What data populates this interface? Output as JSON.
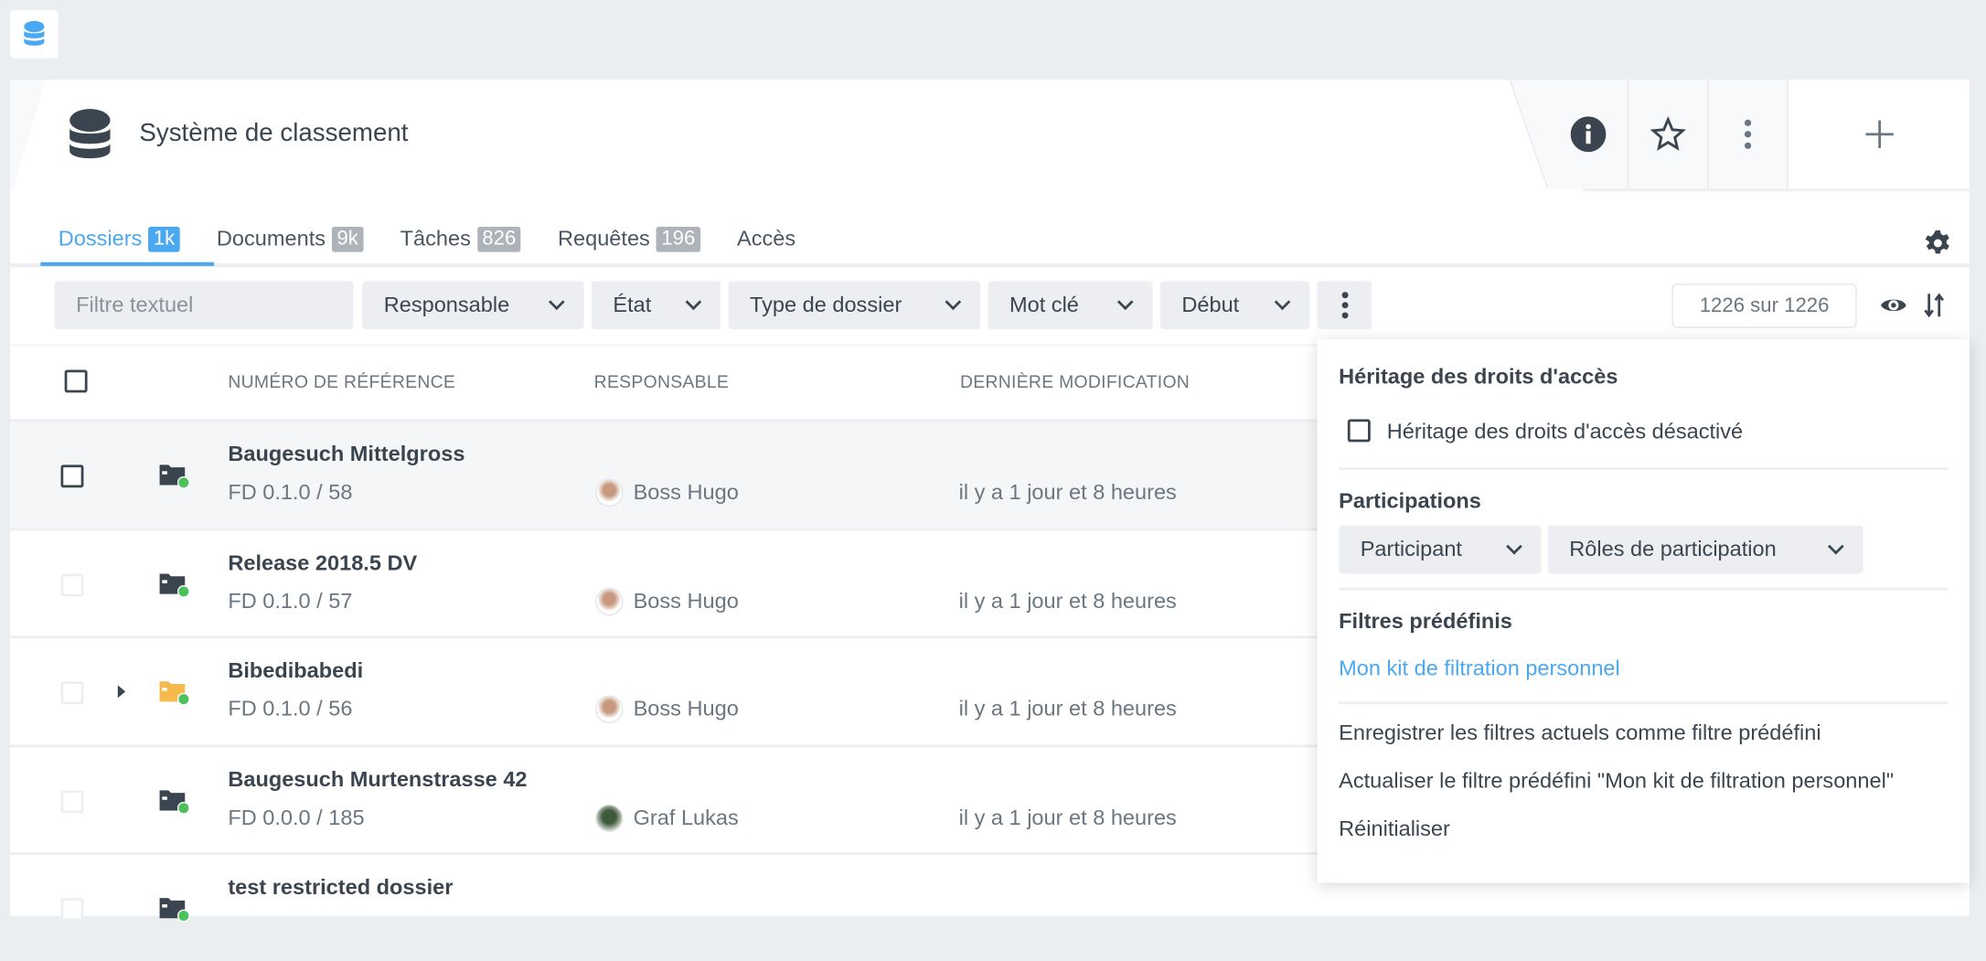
{
  "colors": {
    "accent": "#4aa8f0",
    "text": "#3a4550",
    "muted": "#6b7680",
    "status_green": "#4cc05a",
    "folder_yellow": "#f6b94e"
  },
  "app_icon": "database-icon",
  "header": {
    "title": "Système de classement",
    "icon": "database-icon",
    "actions": [
      "info-icon",
      "star-icon",
      "kebab-icon",
      "plus-icon"
    ]
  },
  "tabs": [
    {
      "label": "Dossiers",
      "badge": "1k",
      "active": true
    },
    {
      "label": "Documents",
      "badge": "9k"
    },
    {
      "label": "Tâches",
      "badge": "826"
    },
    {
      "label": "Requêtes",
      "badge": "196"
    },
    {
      "label": "Accès"
    }
  ],
  "filters": {
    "text_placeholder": "Filtre textuel",
    "responsable": "Responsable",
    "etat": "État",
    "type": "Type de dossier",
    "mot_cle": "Mot clé",
    "debut": "Début",
    "count": "1226 sur 1226"
  },
  "table": {
    "columns": [
      "NUMÉRO DE RÉFÉRENCE",
      "RESPONSABLE",
      "DERNIÈRE MODIFICATION"
    ],
    "rows": [
      {
        "title": "Baugesuch Mittelgross",
        "ref": "FD 0.1.0 / 58",
        "responsable": "Boss Hugo",
        "modified": "il y a 1 jour et 8 heures",
        "folder": "dark"
      },
      {
        "title": "Release 2018.5 DV",
        "ref": "FD 0.1.0 / 57",
        "responsable": "Boss Hugo",
        "modified": "il y a 1 jour et 8 heures",
        "folder": "dark"
      },
      {
        "title": "Bibedibabedi",
        "ref": "FD 0.1.0 / 56",
        "responsable": "Boss Hugo",
        "modified": "il y a 1 jour et 8 heures",
        "folder": "yellow"
      },
      {
        "title": "Baugesuch Murtenstrasse 42",
        "ref": "FD 0.0.0 / 185",
        "responsable": "Graf Lukas",
        "modified": "il y a 1 jour et 8 heures",
        "folder": "dark"
      },
      {
        "title": "test restricted dossier",
        "folder": "dark"
      }
    ]
  },
  "panel": {
    "inherit_heading": "Héritage des droits d'accès",
    "inherit_checkbox": "Héritage des droits d'accès désactivé",
    "participations_heading": "Participations",
    "participant": "Participant",
    "roles": "Rôles de participation",
    "predefined_heading": "Filtres prédéfinis",
    "predefined_link": "Mon kit de filtration personnel",
    "save": "Enregistrer les filtres actuels comme filtre prédéfini",
    "update": "Actualiser le filtre prédéfini \"Mon kit de filtration personnel\"",
    "reset": "Réinitialiser"
  }
}
